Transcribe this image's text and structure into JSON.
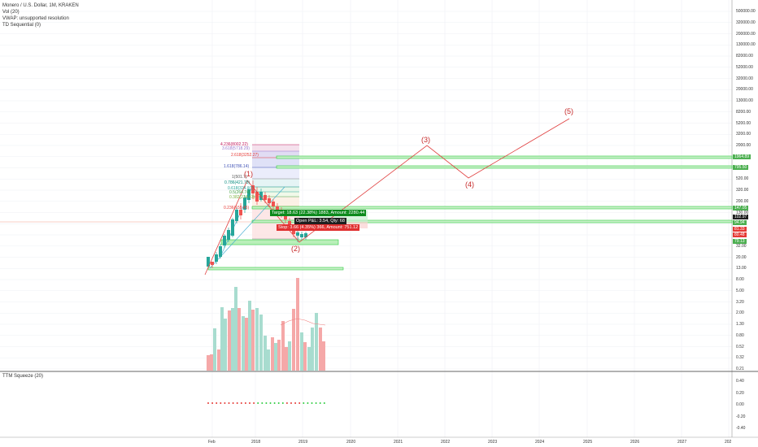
{
  "legend": {
    "symbol": "Monero / U.S. Dollar, 1M, KRAKEN",
    "vol": "Vol (20)",
    "vwap": "VWAP: unsupported resolution",
    "td": "TD Sequential (0)"
  },
  "squeeze_title": "TTM Squeeze (20)",
  "price_axis": [
    "500000.00",
    "320000.00",
    "200000.00",
    "130000.00",
    "82000.00",
    "52000.00",
    "32000.00",
    "20000.00",
    "13000.00",
    "8200.00",
    "5200.00",
    "3200.00",
    "2000.00",
    "1300.00",
    "820.00",
    "520.00",
    "320.00",
    "200.00",
    "130.00",
    "82.00",
    "52.00",
    "32.00",
    "20.00",
    "13.00",
    "8.00",
    "5.00",
    "3.20",
    "2.00",
    "1.30",
    "0.80",
    "0.52",
    "0.32",
    "0.21"
  ],
  "squeeze_axis": [
    "0.40",
    "0.20",
    "0.00",
    "-0.20",
    "-0.40"
  ],
  "time_axis": [
    "Feb",
    "2018",
    "2019",
    "2020",
    "2021",
    "2022",
    "2023",
    "2024",
    "2025",
    "2026",
    "2027",
    "202"
  ],
  "price_tags": [
    {
      "text": "1964.89",
      "color": "#4caf50"
    },
    {
      "text": "795.50",
      "color": "#4caf50"
    },
    {
      "text": "147.05",
      "color": "#4caf50"
    },
    {
      "text": "102.97",
      "color": "#1f1f1f"
    },
    {
      "text": "94.94",
      "color": "#4caf50"
    },
    {
      "text": "81.33",
      "color": "#e53935"
    },
    {
      "text": "80.48",
      "color": "#e53935"
    },
    {
      "text": "79.13",
      "color": "#4caf50"
    }
  ],
  "fib_labels": [
    "4.236(8002.22)",
    "3.618(5718.29)",
    "2.618(3252.27)",
    "1.618(786.14)",
    "1(501.7)",
    "0.786(421.78)",
    "0.618(324.07)",
    "0.5(264.74)",
    "0.382(214.43)",
    "0.236(159.45)"
  ],
  "wave_labels": [
    "(1)",
    "(2)",
    "(3)",
    "(4)",
    "(5)"
  ],
  "position": {
    "target": "Target: 18.63 (22.38%) 1883, Amount: 2280.44",
    "open": "Open P&L: 3.54, Qty: 68",
    "stop": "Stop: 3.66 (4.35%) 366, Amount: 751.12"
  },
  "colors": {
    "up": "#26a69a",
    "down": "#ef5350",
    "wave": "#e04040",
    "green_line": "#2ecc40",
    "fib_red": "#e53935"
  }
}
